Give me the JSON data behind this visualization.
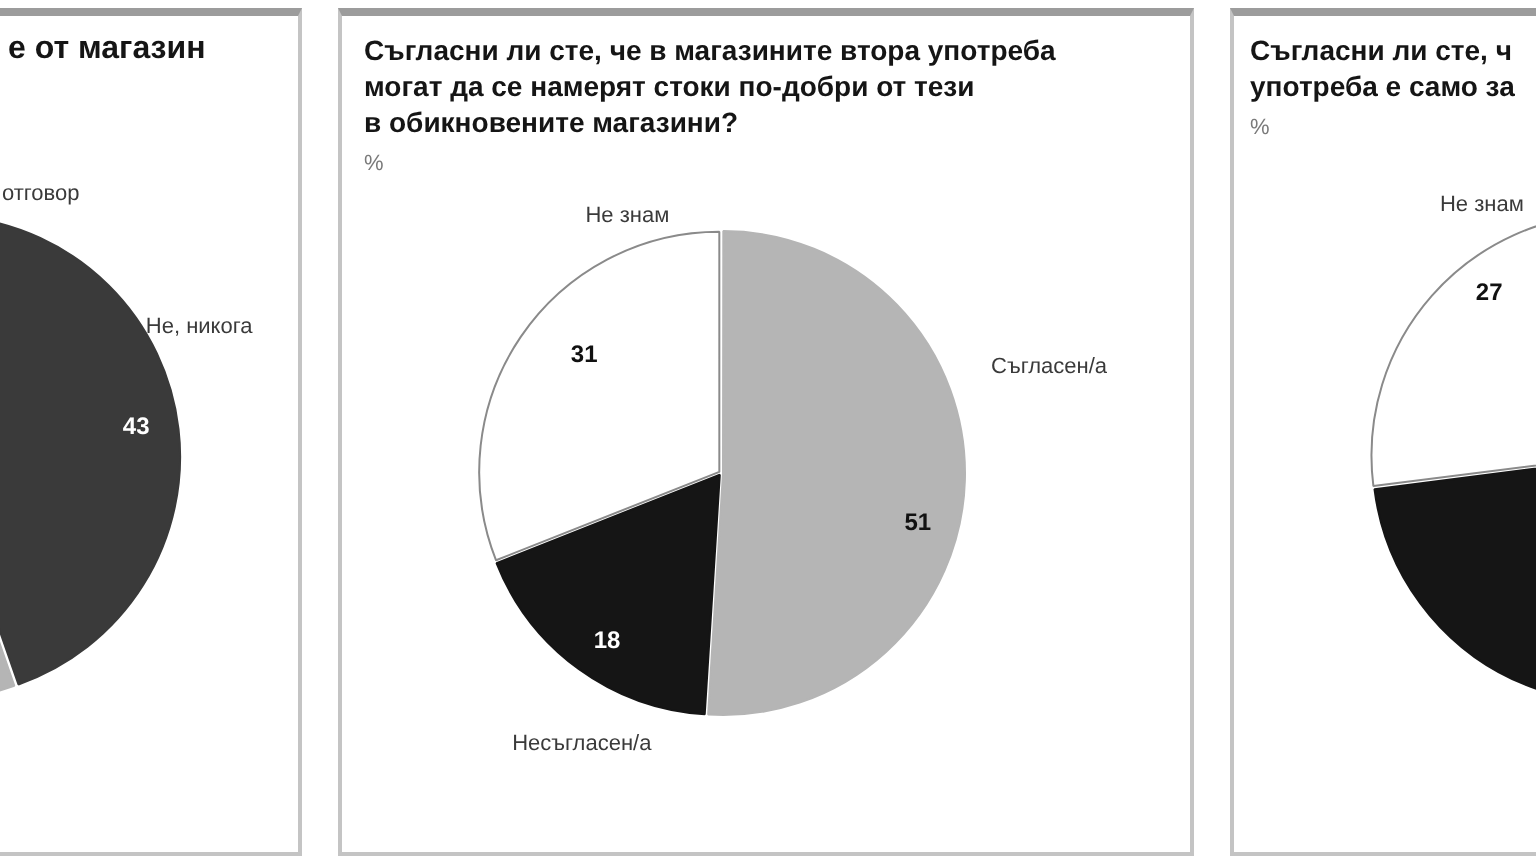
{
  "chart_data": [
    {
      "type": "pie",
      "title": "е от магазин",
      "annotations": [
        "отговор"
      ],
      "categories": [
        "Не, никога",
        null
      ],
      "values": [
        43,
        57
      ],
      "colors": [
        "#3a3a3a",
        "#b5b5b5"
      ],
      "value_labels": [
        "43",
        null
      ]
    },
    {
      "type": "pie",
      "title": "Съгласни ли сте, че в магазините втора употреба\nмогат да се намерят стоки по-добри от тези\nв обикновените магазини?",
      "subtitle": "%",
      "categories": [
        "Съгласен/а",
        "Несъгласен/а",
        "Не знам"
      ],
      "values": [
        51,
        18,
        31
      ],
      "colors": [
        "#b5b5b5",
        "#151515",
        "#ffffff"
      ],
      "data_labels": true
    },
    {
      "type": "pie",
      "title": "Съгласни ли сте, ч\nупотреба е само за",
      "subtitle": "%",
      "categories": [
        null,
        "Не знам"
      ],
      "values": [
        73,
        27
      ],
      "colors": [
        "#151515",
        "#ffffff"
      ],
      "value_labels": [
        null,
        "27"
      ]
    }
  ]
}
